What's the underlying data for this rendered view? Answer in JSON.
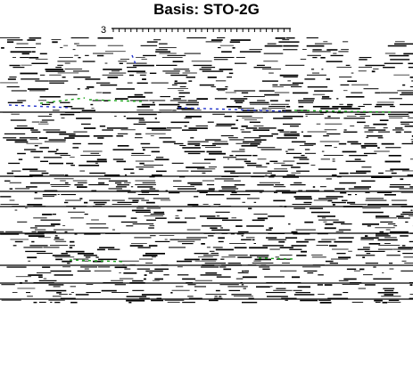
{
  "chart_data": {
    "type": "line",
    "title": "Basis: STO-2G",
    "ytick_label": "3",
    "colors": {
      "axis": "#000000",
      "green": "#1aa31a",
      "blue": "#2233cc"
    }
  }
}
